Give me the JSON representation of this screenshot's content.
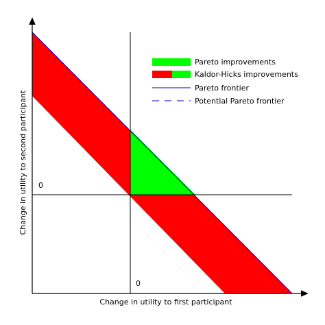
{
  "axes": {
    "x_label": "Change in utility to first participant",
    "y_label": "Change in utility to second participant",
    "x_origin_label": "0",
    "y_origin_label": "0"
  },
  "legend": {
    "pareto_improvements": "Pareto improvements",
    "kaldor_hicks_improvements": "Kaldor-Hicks improvements",
    "pareto_frontier": "Pareto frontier",
    "potential_pareto_frontier": "Potential Pareto frontier"
  },
  "colors": {
    "pareto_region": "#00ff00",
    "kaldor_hicks_region": "#ff0000",
    "frontier_line": "#0000cc",
    "axis": "#000000"
  }
}
